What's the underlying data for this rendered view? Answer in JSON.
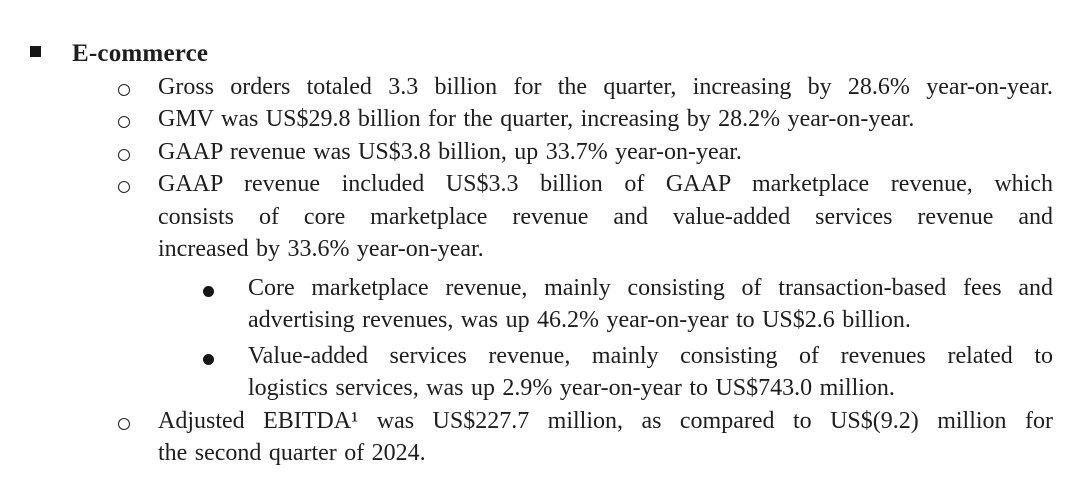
{
  "page": {
    "heading": {
      "bullet": "filled-square",
      "text": "E-commerce"
    },
    "list": [
      {
        "level": 2,
        "bullet": "hollow-circle",
        "lines": [
          {
            "text": "Gross orders totaled 3.3 billion for the quarter, increasing by 28.6% year-on-year.",
            "fill": true
          }
        ]
      },
      {
        "level": 2,
        "bullet": "hollow-circle",
        "lines": [
          {
            "text": "GMV was US$29.8 billion for the quarter, increasing by 28.2% year-on-year.",
            "fill": false
          }
        ]
      },
      {
        "level": 2,
        "bullet": "hollow-circle",
        "lines": [
          {
            "text": "GAAP revenue was US$3.8 billion, up 33.7% year-on-year.",
            "fill": false
          }
        ]
      },
      {
        "level": 2,
        "bullet": "hollow-circle",
        "lines": [
          {
            "text": "GAAP revenue included US$3.3 billion of GAAP marketplace revenue, which",
            "fill": true
          },
          {
            "text": "consists of core marketplace revenue and value-added services revenue and",
            "fill": true
          },
          {
            "text": "increased by 33.6% year-on-year.",
            "fill": false
          }
        ]
      },
      {
        "level": 3,
        "bullet": "filled-dot",
        "lines": [
          {
            "text": "Core marketplace revenue, mainly consisting of transaction-based fees and",
            "fill": true
          },
          {
            "text": "advertising revenues, was up 46.2% year-on-year to US$2.6 billion.",
            "fill": false
          }
        ]
      },
      {
        "level": 3,
        "bullet": "filled-dot",
        "lines": [
          {
            "text": "Value-added services revenue, mainly consisting of revenues related to",
            "fill": true
          },
          {
            "text": "logistics services, was up 2.9% year-on-year to US$743.0 million.",
            "fill": false
          }
        ]
      },
      {
        "level": 2,
        "bullet": "hollow-circle",
        "lines": [
          {
            "text": "Adjusted EBITDA¹ was US$227.7 million, as compared to US$(9.2) million for",
            "fill": true
          },
          {
            "text": "the second quarter of 2024.",
            "fill": false
          }
        ]
      }
    ]
  }
}
